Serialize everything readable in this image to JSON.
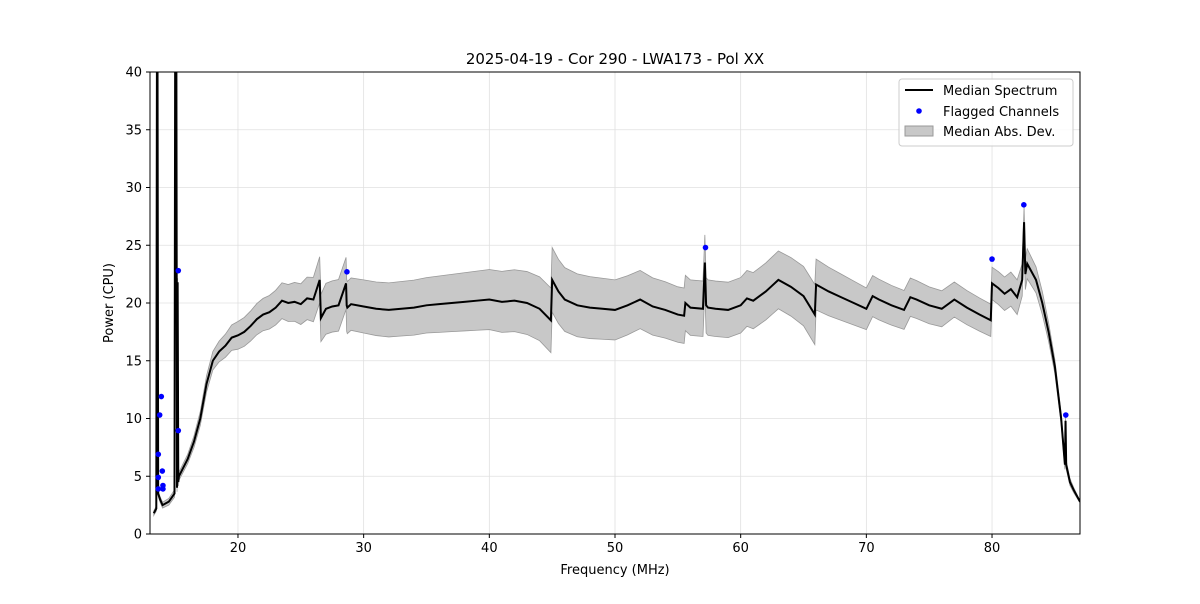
{
  "chart_data": {
    "type": "line",
    "title": "2025-04-19 - Cor 290 - LWA173 - Pol XX",
    "xlabel": "Frequency (MHz)",
    "ylabel": "Power (CPU)",
    "xlim": [
      13.0,
      87.0
    ],
    "ylim": [
      0,
      40
    ],
    "xticks": [
      20,
      30,
      40,
      50,
      60,
      70,
      80
    ],
    "yticks": [
      0,
      5,
      10,
      15,
      20,
      25,
      30,
      35,
      40
    ],
    "grid": true,
    "legend_position": "top-right",
    "legend": [
      "Median Spectrum",
      "Flagged Channels",
      "Median Abs. Dev."
    ],
    "colors": {
      "median": "#000000",
      "flagged": "#0000ff",
      "mad": "#c8c8c8",
      "mad_edge": "#999999"
    },
    "median_spectrum": {
      "x": [
        13.3,
        13.5,
        13.55,
        13.6,
        13.65,
        13.8,
        14.0,
        14.5,
        14.95,
        15.0,
        15.1,
        15.15,
        15.2,
        15.25,
        15.3,
        16,
        16.5,
        17,
        17.5,
        18,
        18.5,
        19,
        19.5,
        20,
        20.5,
        21,
        21.5,
        22,
        22.5,
        23,
        23.5,
        24,
        24.5,
        25,
        25.5,
        26,
        26.5,
        26.6,
        27,
        27.5,
        28,
        28.6,
        28.65,
        28.7,
        29,
        30,
        31,
        32,
        33,
        34,
        35,
        36,
        37,
        38,
        39,
        40,
        41,
        42,
        43,
        44,
        44.9,
        45.0,
        45.5,
        46,
        47,
        48,
        49,
        50,
        51,
        52,
        53,
        54,
        55,
        55.5,
        55.6,
        56,
        57,
        57.15,
        57.25,
        57.4,
        58,
        59,
        60,
        60.5,
        61,
        61.5,
        62,
        62.5,
        63,
        64,
        65,
        65.9,
        66.0,
        67,
        68,
        69,
        70,
        70.5,
        71,
        72,
        73,
        73.5,
        74,
        75,
        76,
        77,
        78,
        79,
        79.9,
        80.0,
        80.5,
        81,
        81.5,
        82,
        82.4,
        82.55,
        82.65,
        82.8,
        83,
        83.5,
        84,
        84.5,
        85,
        85.5,
        85.8,
        85.85,
        85.9,
        86.2,
        86.5,
        87
      ],
      "y": [
        1.8,
        2.2,
        40,
        40,
        3.5,
        3.0,
        2.5,
        2.8,
        3.5,
        40,
        40,
        4.0,
        21.8,
        4.5,
        5.0,
        6.5,
        8.0,
        10.0,
        13.0,
        15.0,
        15.8,
        16.3,
        17.0,
        17.2,
        17.5,
        18.0,
        18.6,
        19.0,
        19.2,
        19.6,
        20.2,
        20.0,
        20.1,
        19.9,
        20.4,
        20.3,
        22.0,
        18.7,
        19.5,
        19.7,
        19.8,
        21.7,
        19.8,
        19.6,
        19.9,
        19.7,
        19.5,
        19.4,
        19.5,
        19.6,
        19.8,
        19.9,
        20.0,
        20.1,
        20.2,
        20.3,
        20.1,
        20.2,
        20.0,
        19.5,
        18.5,
        22.0,
        21.0,
        20.3,
        19.8,
        19.6,
        19.5,
        19.4,
        19.8,
        20.3,
        19.7,
        19.4,
        19.0,
        18.9,
        20.0,
        19.6,
        19.5,
        23.5,
        19.8,
        19.6,
        19.5,
        19.4,
        19.8,
        20.4,
        20.2,
        20.6,
        21.0,
        21.5,
        22.0,
        21.4,
        20.6,
        19.0,
        21.6,
        21.0,
        20.5,
        20.0,
        19.5,
        20.6,
        20.3,
        19.8,
        19.4,
        20.5,
        20.3,
        19.8,
        19.5,
        20.3,
        19.6,
        19.0,
        18.5,
        21.7,
        21.3,
        20.8,
        21.2,
        20.5,
        22.0,
        27.0,
        22.5,
        23.4,
        23.0,
        22.0,
        20.0,
        17.5,
        14.5,
        10.0,
        6.0,
        9.8,
        6.0,
        4.5,
        3.8,
        2.8
      ]
    },
    "mad_halfwidth": {
      "x": [
        13.3,
        16,
        18,
        20,
        22,
        24,
        26.5,
        27,
        30,
        35,
        40,
        44.9,
        45.0,
        50,
        55,
        60,
        65.9,
        66.0,
        70,
        75,
        79.9,
        80.0,
        82,
        84,
        85,
        87
      ],
      "y": [
        0.2,
        0.4,
        0.8,
        1.2,
        1.4,
        1.6,
        2.0,
        2.2,
        2.3,
        2.4,
        2.6,
        2.8,
        2.8,
        2.6,
        2.4,
        2.4,
        2.6,
        2.2,
        1.8,
        1.6,
        1.4,
        1.4,
        1.5,
        1.0,
        0.6,
        0.1
      ]
    },
    "flagged_channels": {
      "x": [
        13.66,
        13.66,
        13.66,
        13.77,
        13.9,
        13.98,
        14.03,
        14.03,
        15.25,
        15.25,
        28.67,
        57.2,
        80.0,
        82.53,
        85.87
      ],
      "y": [
        3.9,
        4.9,
        6.9,
        10.3,
        11.9,
        5.45,
        4.2,
        3.9,
        8.95,
        22.8,
        22.7,
        24.8,
        23.8,
        28.5,
        10.3
      ]
    }
  }
}
